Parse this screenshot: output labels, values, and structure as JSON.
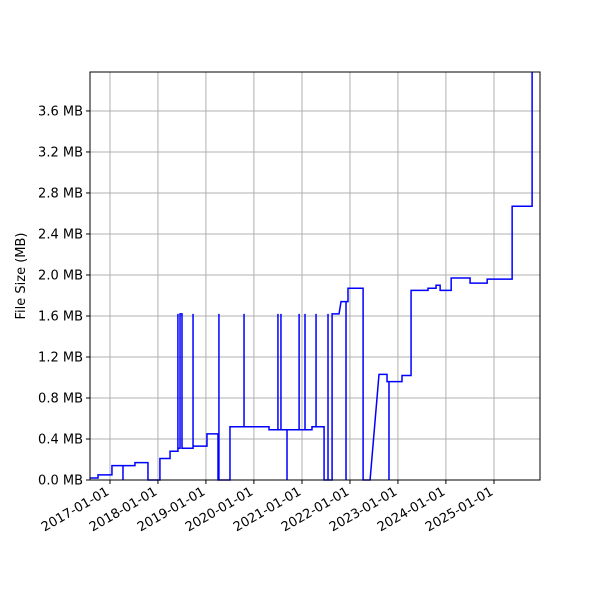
{
  "chart_data": {
    "type": "line",
    "y_label": "File Size (MB)",
    "xlim": [
      "2016-08-02",
      "2025-12-17"
    ],
    "xticks": [
      "2017-01-01",
      "2018-01-01",
      "2019-01-01",
      "2020-01-01",
      "2021-01-01",
      "2022-01-01",
      "2023-01-01",
      "2024-01-01",
      "2025-01-01"
    ],
    "ylim": [
      0,
      3.98
    ],
    "yticks": [
      {
        "value": 0,
        "label": "0.0 MB"
      },
      {
        "value": 0.4,
        "label": "0.4 MB"
      },
      {
        "value": 0.8,
        "label": "0.8 MB"
      },
      {
        "value": 1.2,
        "label": "1.2 MB"
      },
      {
        "value": 1.6,
        "label": "1.6 MB"
      },
      {
        "value": 2.0,
        "label": "2.0 MB"
      },
      {
        "value": 2.4,
        "label": "2.4 MB"
      },
      {
        "value": 2.8,
        "label": "2.8 MB"
      },
      {
        "value": 3.2,
        "label": "3.2 MB"
      },
      {
        "value": 3.6,
        "label": "3.6 MB"
      }
    ],
    "grid": true,
    "color": "#0000ff",
    "x": [
      "2016-08-02",
      "2016-10-02",
      "2016-10-02",
      "2017-01-16",
      "2017-01-16",
      "2017-04-10",
      "2017-04-10",
      "2017-04-10",
      "2017-07-10",
      "2017-07-10",
      "2017-10-17",
      "2017-10-17",
      "2018-01-16",
      "2018-01-16",
      "2018-04-03",
      "2018-04-03",
      "2018-06-02",
      "2018-06-02",
      "2018-06-02",
      "2018-06-18",
      "2018-06-18",
      "2018-07-03",
      "2018-07-03",
      "2018-09-25",
      "2018-09-25",
      "2018-09-25",
      "2019-01-09",
      "2019-01-09",
      "2019-04-03",
      "2019-04-03",
      "2019-04-10",
      "2019-04-10",
      "2019-04-10",
      "2019-07-03",
      "2019-07-03",
      "2019-10-18",
      "2019-10-18",
      "2019-10-18",
      "2020-04-25",
      "2020-04-25",
      "2020-07-02",
      "2020-07-02",
      "2020-07-02",
      "2020-07-25",
      "2020-07-25",
      "2020-07-25",
      "2020-09-09",
      "2020-09-09",
      "2020-09-09",
      "2020-12-10",
      "2020-12-10",
      "2020-12-10",
      "2021-01-24",
      "2021-01-24",
      "2021-01-24",
      "2021-03-18",
      "2021-03-18",
      "2021-04-18",
      "2021-04-18",
      "2021-04-18",
      "2021-06-18",
      "2021-06-18",
      "2021-07-18",
      "2021-07-18",
      "2021-07-18",
      "2021-08-18",
      "2021-08-18",
      "2021-10-10",
      "2021-10-25",
      "2021-12-02",
      "2021-12-02",
      "2021-12-02",
      "2021-12-17",
      "2021-12-17",
      "2022-04-11",
      "2022-04-11",
      "2022-06-03",
      "2022-08-10",
      "2022-10-10",
      "2022-10-10",
      "2022-10-25",
      "2022-10-25",
      "2022-10-25",
      "2023-02-01",
      "2023-02-01",
      "2023-04-11",
      "2023-04-11",
      "2023-08-18",
      "2023-08-18",
      "2023-10-18",
      "2023-10-18",
      "2023-11-18",
      "2023-11-18",
      "2024-02-10",
      "2024-02-10",
      "2024-07-03",
      "2024-07-03",
      "2024-11-10",
      "2024-11-10",
      "2025-05-19",
      "2025-05-19",
      "2025-10-18",
      "2025-10-18"
    ],
    "values": [
      0.02,
      0.02,
      0.05,
      0.05,
      0.14,
      0.14,
      0,
      0.14,
      0.14,
      0.17,
      0.17,
      0,
      0,
      0.21,
      0.21,
      0.28,
      0.28,
      1.62,
      0.31,
      0.31,
      1.62,
      1.62,
      0.31,
      0.31,
      1.62,
      0.33,
      0.33,
      0.45,
      0.45,
      0,
      0,
      1.62,
      0,
      0,
      0.52,
      0.52,
      1.62,
      0.52,
      0.52,
      0.49,
      0.49,
      1.62,
      0.49,
      0.49,
      1.62,
      0.49,
      0.49,
      0,
      0.49,
      0.49,
      1.62,
      0.49,
      0.49,
      1.62,
      0.49,
      0.49,
      0.52,
      0.52,
      1.62,
      0.52,
      0.52,
      0,
      0,
      1.62,
      0,
      0,
      1.62,
      1.62,
      1.74,
      1.74,
      0,
      1.74,
      1.74,
      1.87,
      1.87,
      0,
      0,
      1.03,
      1.03,
      0.96,
      0.96,
      0,
      0.96,
      0.96,
      1.02,
      1.02,
      1.85,
      1.85,
      1.87,
      1.87,
      1.9,
      1.9,
      1.85,
      1.85,
      1.97,
      1.97,
      1.92,
      1.92,
      1.96,
      1.96,
      2.67,
      2.67,
      3.98
    ]
  }
}
